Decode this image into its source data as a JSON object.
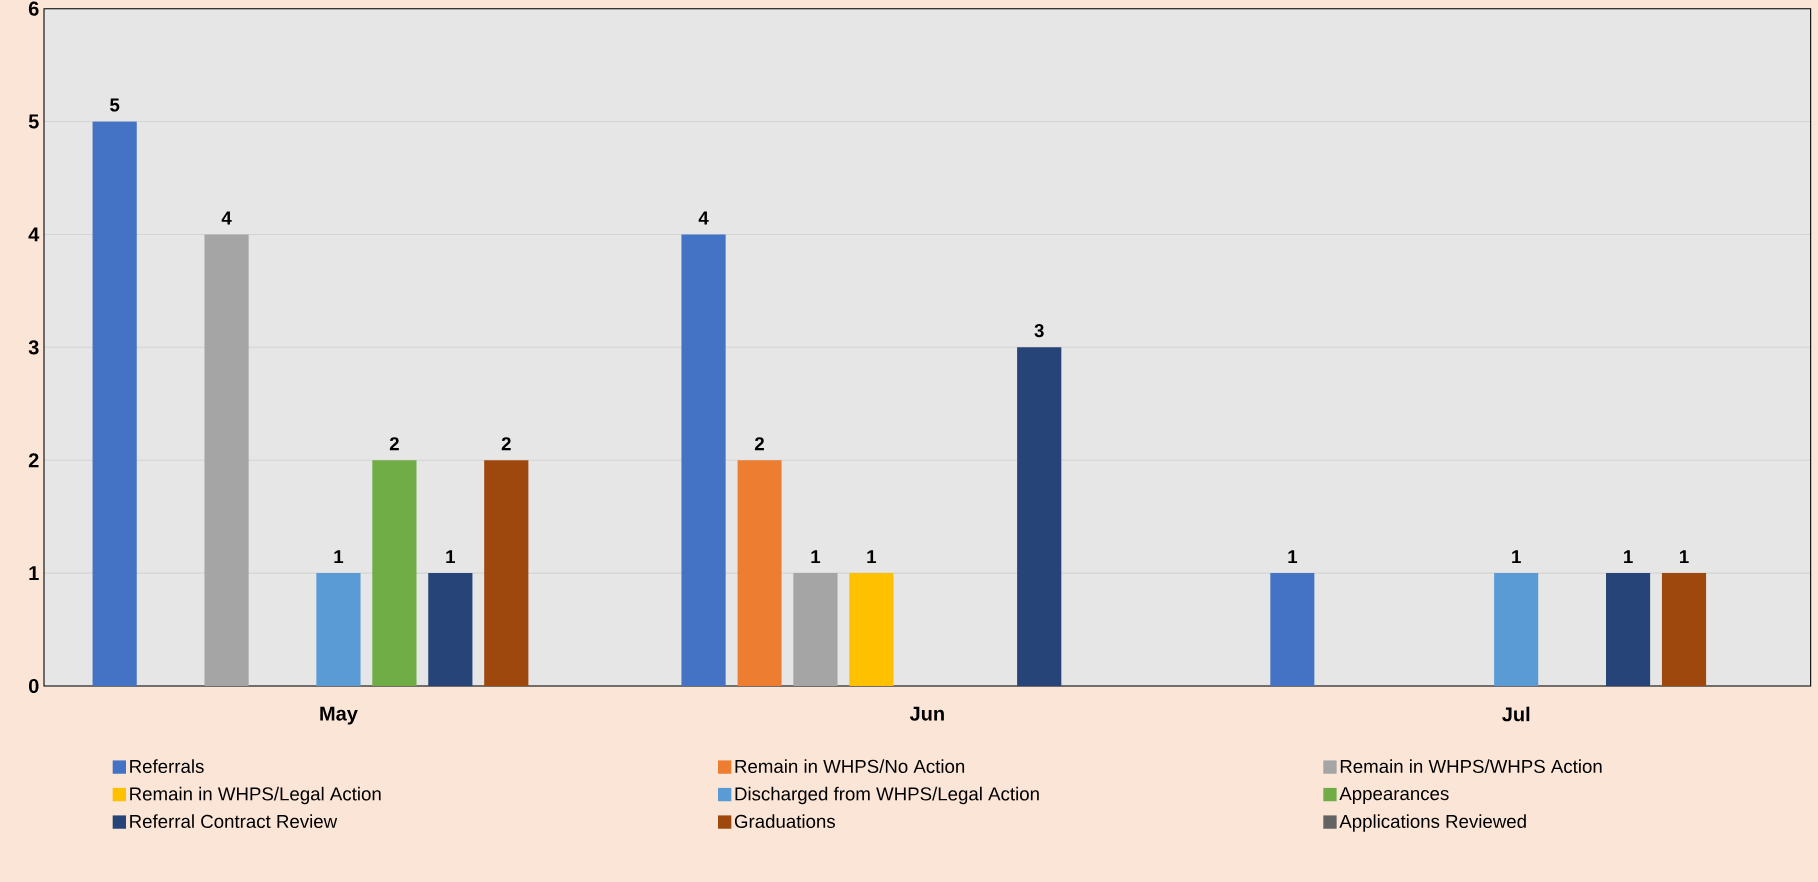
{
  "chart_data": {
    "type": "bar",
    "categories": [
      "May",
      "Jun",
      "Jul"
    ],
    "series": [
      {
        "name": "Referrals",
        "color": "#4472c4",
        "values": [
          5,
          4,
          1
        ],
        "value_labels": [
          "5",
          "4",
          "1"
        ]
      },
      {
        "name": "Remain in WHPS/No Action",
        "color": "#ed7d31",
        "values": [
          null,
          2,
          null
        ],
        "value_labels": [
          null,
          "2",
          null
        ]
      },
      {
        "name": "Remain in WHPS/WHPS Action",
        "color": "#a5a5a5",
        "values": [
          4,
          1,
          null
        ],
        "value_labels": [
          "4",
          "1",
          null
        ]
      },
      {
        "name": "Remain in WHPS/Legal Action",
        "color": "#ffc000",
        "values": [
          null,
          1,
          null
        ],
        "value_labels": [
          null,
          "1",
          null
        ]
      },
      {
        "name": "Discharged from WHPS/Legal Action",
        "color": "#5b9bd5",
        "values": [
          1,
          null,
          1
        ],
        "value_labels": [
          "1",
          null,
          "1"
        ]
      },
      {
        "name": "Appearances",
        "color": "#70ad47",
        "values": [
          2,
          null,
          null
        ],
        "value_labels": [
          "2",
          null,
          null
        ]
      },
      {
        "name": "Referral Contract Review",
        "color": "#264478",
        "values": [
          1,
          3,
          1
        ],
        "value_labels": [
          "1",
          "3",
          "1"
        ]
      },
      {
        "name": "Graduations",
        "color": "#9e480e",
        "values": [
          2,
          null,
          1
        ],
        "value_labels": [
          "2",
          null,
          "1"
        ]
      },
      {
        "name": "Applications Reviewed",
        "color": "#636363",
        "values": [
          null,
          null,
          null
        ],
        "value_labels": [
          null,
          null,
          null
        ]
      }
    ],
    "ylim": [
      0,
      6
    ],
    "yticks": [
      0,
      1,
      2,
      3,
      4,
      5,
      6
    ],
    "grid": "y",
    "legend": "bottom"
  }
}
